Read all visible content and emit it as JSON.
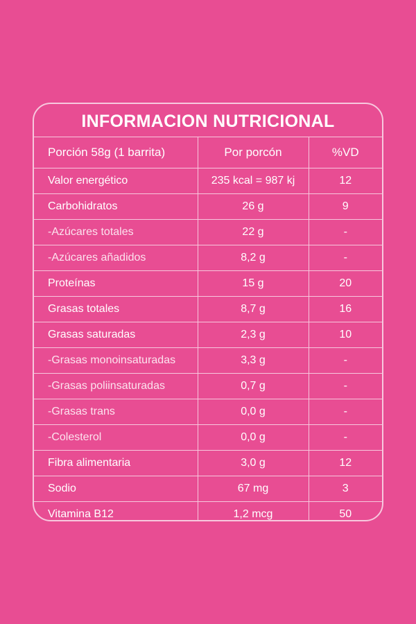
{
  "title": "INFORMACION NUTRICIONAL",
  "header": {
    "col1": "Porción 58g (1 barrita)",
    "col2": "Por porcón",
    "col3": "%VD"
  },
  "rows": [
    {
      "name": "Valor energético",
      "value": "235 kcal = 987 kj",
      "dv": "12"
    },
    {
      "name": "Carbohidratos",
      "value": "26 g",
      "dv": "9"
    },
    {
      "name": "-Azúcares totales",
      "value": "22 g",
      "dv": "-"
    },
    {
      "name": "-Azúcares añadidos",
      "value": "8,2 g",
      "dv": "-"
    },
    {
      "name": "Proteínas",
      "value": "15 g",
      "dv": "20"
    },
    {
      "name": "Grasas totales",
      "value": "8,7 g",
      "dv": "16"
    },
    {
      "name": "Grasas saturadas",
      "value": "2,3 g",
      "dv": "10"
    },
    {
      "name": "-Grasas monoinsaturadas",
      "value": "3,3 g",
      "dv": "-"
    },
    {
      "name": "-Grasas poliinsaturadas",
      "value": "0,7 g",
      "dv": "-"
    },
    {
      "name": "-Grasas trans",
      "value": "0,0 g",
      "dv": "-"
    },
    {
      "name": "-Colesterol",
      "value": "0,0 g",
      "dv": "-"
    },
    {
      "name": "Fibra alimentaria",
      "value": "3,0 g",
      "dv": "12"
    },
    {
      "name": "Sodio",
      "value": "67 mg",
      "dv": "3"
    },
    {
      "name": "Vitamina B12",
      "value": "1,2 mcg",
      "dv": "50"
    }
  ],
  "colors": {
    "background": "#E84D93",
    "lines": "#F7C8DE",
    "text": "#FFFFFF"
  }
}
